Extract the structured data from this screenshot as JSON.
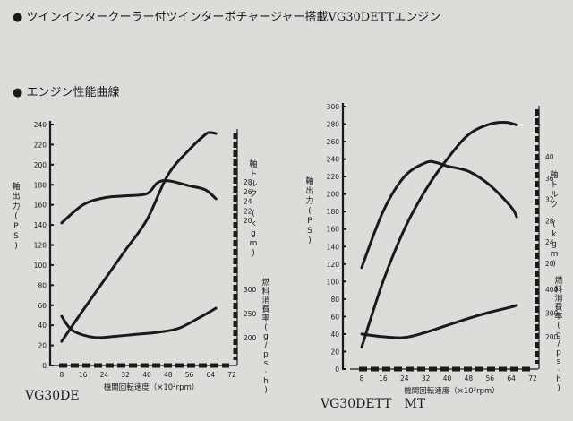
{
  "headings": {
    "line1": "● ツインインタークーラー付ツインターボチャージャー搭載VG30DETTエンジン",
    "line2": "● エンジン性能曲線"
  },
  "chart_data": [
    {
      "type": "line",
      "model": "VG30DE",
      "xlabel": "機関回転速度（×10²rpm）",
      "x_ticks": [
        "8",
        "16",
        "24",
        "32",
        "40",
        "48",
        "56",
        "64",
        "72"
      ],
      "xlim": [
        5,
        73
      ],
      "y_power_label": "軸出力(PS)",
      "y_power_ticks": [
        "0",
        "20",
        "40",
        "60",
        "80",
        "100",
        "120",
        "140",
        "160",
        "180",
        "200",
        "220",
        "240"
      ],
      "y_power_lim": [
        0,
        240
      ],
      "y_torque_label": "軸トルク (kgm)",
      "y_torque_ticks": [
        "20",
        "22",
        "24",
        "26",
        "28"
      ],
      "y_fuel_label": "燃料消費率(g/ps·h)",
      "y_fuel_ticks": [
        "200",
        "250",
        "300"
      ],
      "series": [
        {
          "name": "軸出力",
          "x": [
            8,
            16,
            24,
            32,
            40,
            48,
            56,
            62,
            64,
            66
          ],
          "y": [
            24,
            55,
            85,
            115,
            145,
            190,
            215,
            230,
            232,
            231
          ]
        },
        {
          "name": "軸トルク",
          "x": [
            8,
            16,
            24,
            32,
            40,
            44,
            48,
            56,
            62,
            66
          ],
          "y": [
            142,
            160,
            167,
            169,
            171,
            182,
            184,
            179,
            175,
            166
          ]
        },
        {
          "name": "燃料消費率",
          "x": [
            8,
            12,
            20,
            28,
            36,
            44,
            52,
            60,
            66
          ],
          "y": [
            49,
            35,
            28,
            29,
            31,
            33,
            37,
            48,
            57
          ]
        }
      ]
    },
    {
      "type": "line",
      "model": "VG30DETT　MT",
      "xlabel": "機関回転速度（×10²rpm）",
      "x_ticks": [
        "8",
        "16",
        "24",
        "32",
        "40",
        "48",
        "56",
        "64",
        "72"
      ],
      "xlim": [
        5,
        73
      ],
      "y_power_label": "軸出力(PS)",
      "y_power_ticks": [
        "0",
        "20",
        "40",
        "60",
        "80",
        "100",
        "120",
        "140",
        "160",
        "180",
        "200",
        "220",
        "240",
        "260",
        "280",
        "300"
      ],
      "y_power_lim": [
        0,
        300
      ],
      "y_torque_label": "軸トルク (kgm)",
      "y_torque_ticks": [
        "20",
        "24",
        "28",
        "32",
        "36",
        "40"
      ],
      "y_fuel_label": "燃料消費率(g/ps·h)",
      "y_fuel_ticks": [
        "200",
        "300",
        "400"
      ],
      "series": [
        {
          "name": "軸出力",
          "x": [
            8,
            16,
            24,
            32,
            40,
            48,
            56,
            62,
            66
          ],
          "y": [
            25,
            100,
            160,
            205,
            240,
            268,
            280,
            282,
            279
          ]
        },
        {
          "name": "軸トルク",
          "x": [
            8,
            16,
            24,
            32,
            36,
            40,
            48,
            56,
            64,
            66
          ],
          "y": [
            116,
            180,
            220,
            236,
            236,
            232,
            226,
            210,
            185,
            174
          ]
        },
        {
          "name": "燃料消費率",
          "x": [
            8,
            16,
            24,
            32,
            40,
            48,
            56,
            64,
            66
          ],
          "y": [
            40,
            37,
            36,
            42,
            50,
            58,
            65,
            71,
            73
          ]
        }
      ]
    }
  ]
}
